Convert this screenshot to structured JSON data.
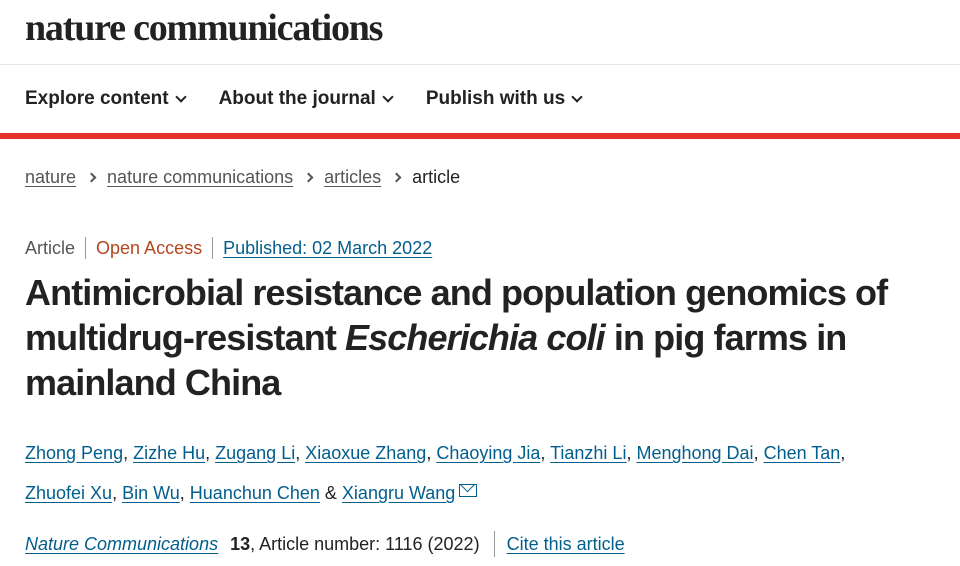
{
  "header": {
    "logo": "nature communications"
  },
  "nav": {
    "items": [
      {
        "label": "Explore content"
      },
      {
        "label": "About the journal"
      },
      {
        "label": "Publish with us"
      }
    ]
  },
  "breadcrumb": [
    "nature",
    "nature communications",
    "articles",
    "article"
  ],
  "meta": {
    "type": "Article",
    "access": "Open Access",
    "published": "Published: 02 March 2022"
  },
  "title": {
    "line1": "Antimicrobial resistance and population genomics of",
    "line2_pre": "multidrug-resistant ",
    "line2_italic": "Escherichia coli",
    "line2_post": " in pig farms in",
    "line3": "mainland China"
  },
  "authors": [
    "Zhong Peng",
    "Zizhe Hu",
    "Zugang Li",
    "Xiaoxue Zhang",
    "Chaoying Jia",
    "Tianzhi Li",
    "Menghong Dai",
    "Chen Tan",
    "Zhuofei Xu",
    "Bin Wu",
    "Huanchun Chen",
    "Xiangru Wang"
  ],
  "authors_sep": {
    "comma": ", ",
    "and": " & "
  },
  "citation": {
    "journal": "Nature Communications",
    "volume": "13",
    "rest": ", Article number: 1116 (2022)",
    "cite_link": "Cite this article"
  },
  "colors": {
    "link": "#025e8d",
    "accent_bar": "#e2332a",
    "open_access": "#b3461f"
  }
}
